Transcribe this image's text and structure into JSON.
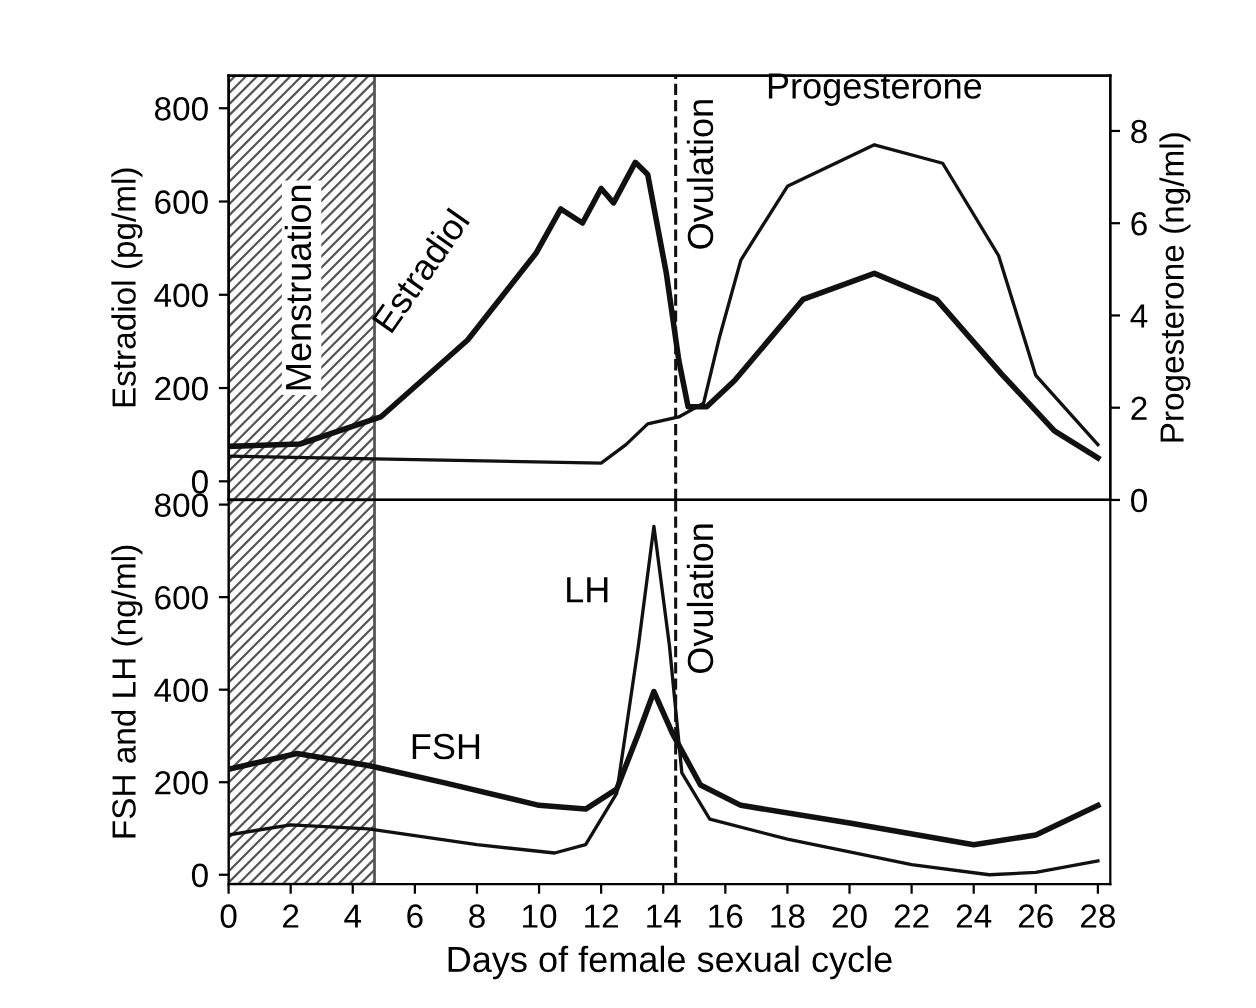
{
  "chart_data": [
    {
      "type": "line",
      "ylabel": "Estradiol (pg/ml)",
      "y2label": "Progesterone (ng/ml)",
      "xlim": [
        0,
        28.4
      ],
      "ylim": [
        -40,
        870
      ],
      "yticks": [
        0,
        200,
        400,
        600,
        800
      ],
      "y2lim": [
        0,
        9.2
      ],
      "y2ticks": [
        0,
        2,
        4,
        6,
        8
      ],
      "tick_labels": "y",
      "grid": false,
      "legend": false,
      "line_style": "solid",
      "marker": "none",
      "series": [
        {
          "name": "Estradiol",
          "color": "#111111",
          "x": [
            0,
            2.3,
            4.9,
            7.7,
            9.9,
            10.7,
            11.4,
            12,
            12.4,
            13.1,
            13.5,
            14.1,
            14.5,
            14.8,
            15.4,
            16.3,
            18.5,
            20.8,
            22.8,
            24.9,
            26.6,
            28
          ],
          "values": [
            75,
            80,
            138,
            303,
            489,
            584,
            554,
            628,
            597,
            684,
            658,
            446,
            260,
            160,
            160,
            216,
            390,
            446,
            390,
            230,
            108,
            50
          ]
        },
        {
          "name": "Progesterone",
          "color": "#111111",
          "axis": "y2",
          "x": [
            0,
            12,
            12.8,
            13.5,
            14.5,
            15.3,
            15.8,
            16.5,
            18,
            20.8,
            23,
            24.8,
            26,
            28
          ],
          "values": [
            0.95,
            0.8,
            1.2,
            1.65,
            1.8,
            2.1,
            3.5,
            5.2,
            6.8,
            7.7,
            7.3,
            5.3,
            2.7,
            1.2
          ]
        }
      ],
      "bands": [
        {
          "axis": "x",
          "from": 0,
          "to": 4.7,
          "label": "Menstruation",
          "color": "#555555"
        }
      ],
      "ref_lines": [
        {
          "axis": "x",
          "value": 14.4,
          "label": "Ovulation",
          "line_style": "dashed",
          "color": "#111111"
        }
      ]
    },
    {
      "type": "line",
      "xlabel": "Days of female sexual cycle",
      "ylabel": "FSH and LH (ng/ml)",
      "xlim": [
        0,
        28.4
      ],
      "xticks": [
        0,
        2,
        4,
        6,
        8,
        10,
        12,
        14,
        16,
        18,
        20,
        22,
        24,
        26,
        28
      ],
      "ylim": [
        -20,
        810
      ],
      "yticks": [
        0,
        200,
        400,
        600,
        800
      ],
      "grid": false,
      "legend": false,
      "line_style": "solid",
      "marker": "none",
      "series": [
        {
          "name": "LH",
          "color": "#111111",
          "x": [
            0,
            2,
            4.5,
            8,
            10.5,
            11.5,
            12.5,
            13.2,
            13.7,
            14.2,
            14.6,
            15.5,
            18,
            22,
            24.5,
            26,
            28
          ],
          "values": [
            86,
            108,
            99,
            65,
            47,
            65,
            176,
            495,
            753,
            495,
            220,
            120,
            77,
            22,
            0,
            5,
            30
          ]
        },
        {
          "name": "FSH",
          "color": "#111111",
          "x": [
            0,
            2.2,
            4.5,
            7,
            10,
            11.5,
            12.5,
            13.2,
            13.7,
            14.3,
            15.2,
            16.5,
            20,
            24,
            26,
            28
          ],
          "values": [
            228,
            262,
            236,
            198,
            150,
            142,
            185,
            305,
            396,
            305,
            194,
            150,
            112,
            65,
            86,
            150
          ]
        }
      ],
      "bands": [
        {
          "axis": "x",
          "from": 0,
          "to": 4.7,
          "color": "#555555"
        }
      ],
      "ref_lines": [
        {
          "axis": "x",
          "value": 14.4,
          "label": "Ovulation",
          "line_style": "dashed",
          "color": "#111111"
        }
      ]
    }
  ]
}
